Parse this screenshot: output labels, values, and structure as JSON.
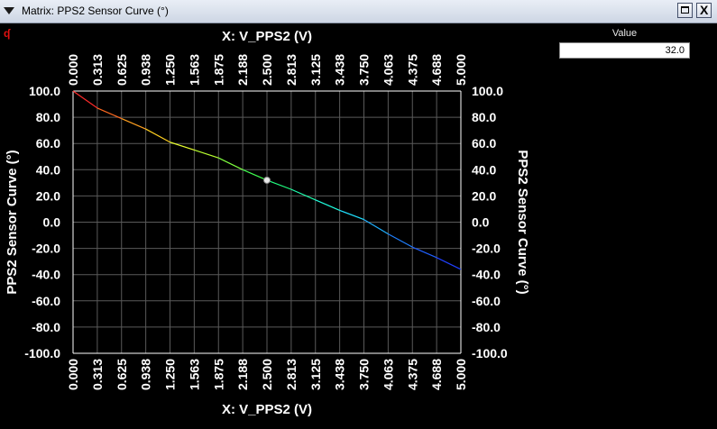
{
  "window": {
    "title": "Matrix: PPS2 Sensor Curve (°)",
    "menu_icon": "triangle-down-icon",
    "maximize_icon": "maximize-icon",
    "close_label": "X",
    "corner_icon": "red-marker-icon",
    "corner_glyph": "ʠ"
  },
  "value_panel": {
    "label": "Value",
    "value": "32.0"
  },
  "chart_data": {
    "type": "line",
    "xlabel": "X: V_PPS2 (V)",
    "ylabel": "PPS2 Sensor Curve (°)",
    "xlim": [
      0.0,
      5.0
    ],
    "ylim": [
      -100.0,
      100.0
    ],
    "x_ticks": [
      "0.000",
      "0.313",
      "0.625",
      "0.938",
      "1.250",
      "1.563",
      "1.875",
      "2.188",
      "2.500",
      "2.813",
      "3.125",
      "3.438",
      "3.750",
      "4.063",
      "4.375",
      "4.688",
      "5.000"
    ],
    "y_ticks": [
      "100.0",
      "80.0",
      "60.0",
      "40.0",
      "20.0",
      "0.0",
      "-20.0",
      "-40.0",
      "-60.0",
      "-80.0",
      "-100.0"
    ],
    "grid": true,
    "x": [
      0.0,
      0.313,
      0.625,
      0.938,
      1.25,
      1.563,
      1.875,
      2.188,
      2.5,
      2.813,
      3.125,
      3.438,
      3.75,
      4.063,
      4.375,
      4.688,
      5.0
    ],
    "y": [
      100.0,
      87.0,
      79.0,
      71.0,
      61.0,
      55.0,
      49.0,
      40.0,
      32.0,
      25.0,
      17.0,
      9.0,
      2.0,
      -9.0,
      -19.0,
      -27.0,
      -36.0
    ],
    "colors": [
      "#ff2a2a",
      "#ff6a20",
      "#ffa020",
      "#ffd020",
      "#e8ff30",
      "#b8ff30",
      "#80ff40",
      "#40ff50",
      "#20ff80",
      "#20ffb0",
      "#20ffe0",
      "#20e0ff",
      "#20b0ff",
      "#2080ff",
      "#2060ff",
      "#2040ff"
    ],
    "current_point": {
      "x": 2.5,
      "y": 32.0
    },
    "background": "#000000",
    "grid_color": "#5a5a5a"
  }
}
